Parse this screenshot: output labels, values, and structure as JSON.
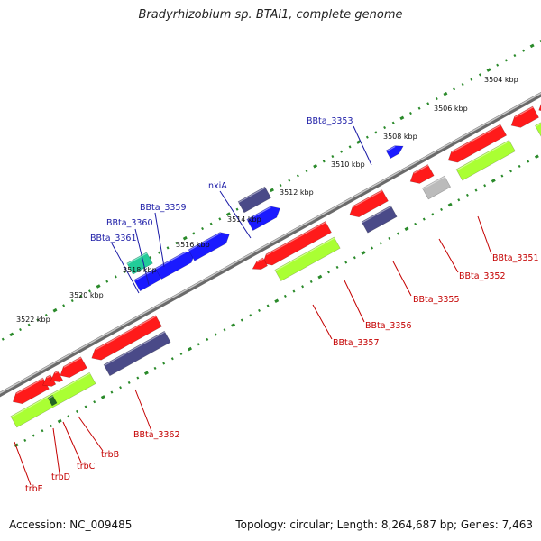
{
  "title": "Bradyrhizobium sp. BTAi1, complete genome",
  "footer": {
    "accession": "Accession: NC_009485",
    "summary": "Topology: circular; Length: 8,264,687 bp; Genes: 7,463"
  },
  "colors": {
    "backbone": "#8a8a8a",
    "tick": "#2a8a2a",
    "forward_label": "#1a1aa6",
    "reverse_label": "#c40000",
    "gene_red": "#ff1a1a",
    "gene_blue": "#1a1aff",
    "gene_navy": "#4a4a88",
    "gene_green": "#aaff33",
    "gene_teal": "#22cc99",
    "gene_gray": "#bbbbbb"
  },
  "ticks": [
    {
      "label": "3504 kbp"
    },
    {
      "label": "3506 kbp"
    },
    {
      "label": "3508 kbp"
    },
    {
      "label": "3510 kbp"
    },
    {
      "label": "3512 kbp"
    },
    {
      "label": "3514 kbp"
    },
    {
      "label": "3516 kbp"
    },
    {
      "label": "3518 kbp"
    },
    {
      "label": "3520 kbp"
    },
    {
      "label": "3522 kbp"
    }
  ],
  "forward_labels": [
    "BBta_3353",
    "nxiA",
    "BBta_3359",
    "BBta_3360",
    "BBta_3361"
  ],
  "reverse_labels": [
    "BBta_3351",
    "BBta_3352",
    "BBta_3355",
    "BBta_3356",
    "BBta_3357",
    "BBta_3362",
    "trbB",
    "trbC",
    "trbD",
    "trbE"
  ]
}
